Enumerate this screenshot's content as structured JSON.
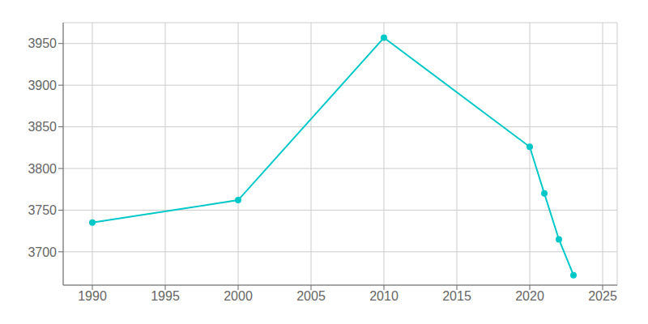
{
  "chart_data": {
    "type": "line",
    "x": [
      1990,
      2000,
      2010,
      2020,
      2021,
      2022,
      2023
    ],
    "values": [
      3735,
      3762,
      3957,
      3826,
      3770,
      3715,
      3672
    ],
    "color": "#00C8C8",
    "marker": "circle",
    "xlim": [
      1988,
      2026
    ],
    "xticks": [
      1990,
      1995,
      2000,
      2005,
      2010,
      2015,
      2020,
      2025
    ],
    "ylim": [
      3660,
      3975
    ],
    "yticks": [
      3700,
      3750,
      3800,
      3850,
      3900,
      3950
    ],
    "grid": true
  }
}
